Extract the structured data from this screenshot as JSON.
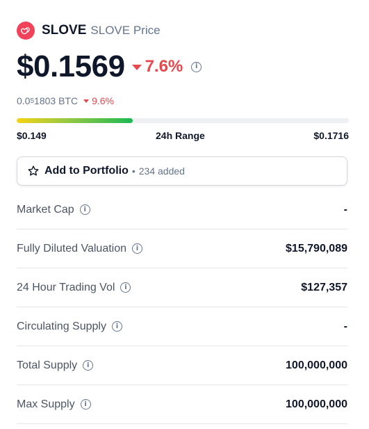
{
  "header": {
    "coin_name": "SLOVE",
    "coin_sub": "SLOVE Price"
  },
  "price": {
    "value": "$0.1569",
    "change": "7.6%",
    "direction": "down"
  },
  "btc": {
    "prefix": "0.0",
    "sub": "5",
    "rest": "1803 BTC",
    "change": "9.6%"
  },
  "range": {
    "low": "$0.149",
    "label": "24h Range",
    "high": "$0.1716",
    "position_fraction": 0.35
  },
  "portfolio": {
    "label": "Add to Portfolio",
    "separator": "•",
    "count": "234 added"
  },
  "stats": [
    {
      "label": "Market Cap",
      "value": "-"
    },
    {
      "label": "Fully Diluted Valuation",
      "value": "$15,790,089"
    },
    {
      "label": "24 Hour Trading Vol",
      "value": "$127,357"
    },
    {
      "label": "Circulating Supply",
      "value": "-"
    },
    {
      "label": "Total Supply",
      "value": "100,000,000"
    },
    {
      "label": "Max Supply",
      "value": "100,000,000"
    }
  ],
  "colors": {
    "negative": "#e5484d",
    "logo": "#f0435a",
    "range_start": "#f5d315",
    "range_end": "#1db954"
  },
  "icons": {
    "logo": "heart-logo-icon",
    "info": "info-icon",
    "star": "star-icon",
    "change": "triangle-down-icon"
  }
}
